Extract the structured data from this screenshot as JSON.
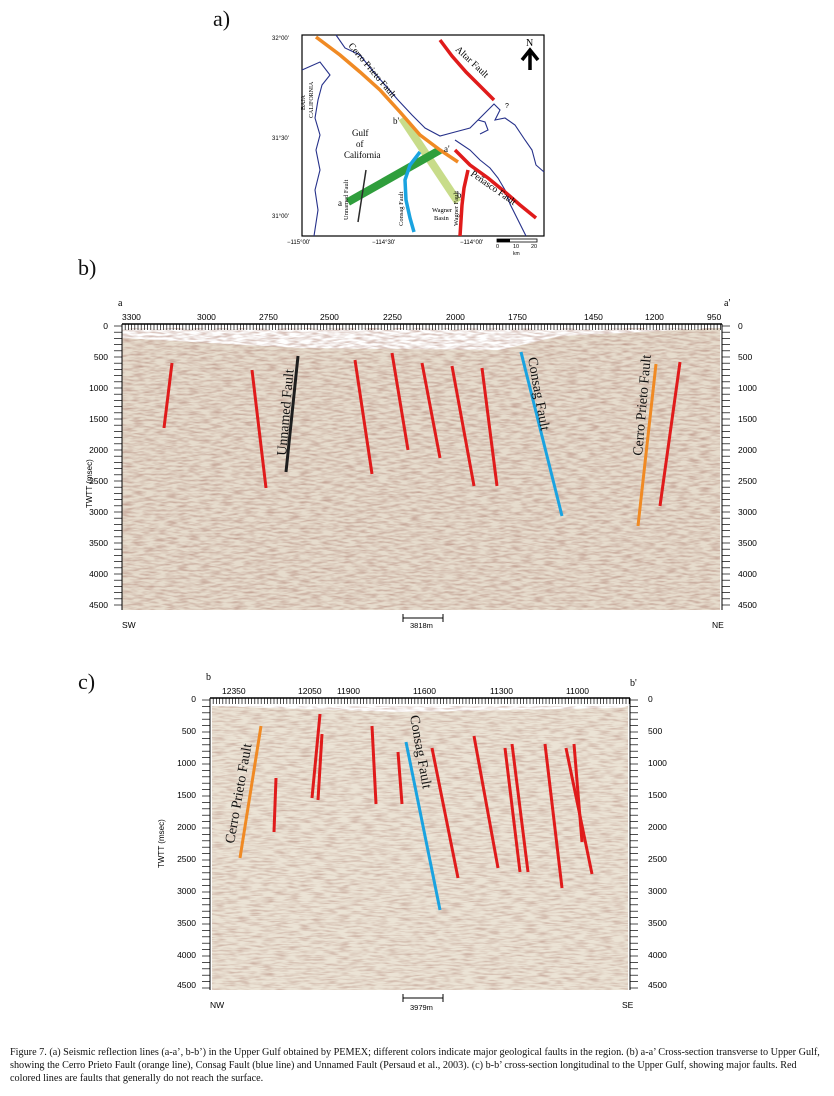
{
  "panel_a": {
    "label": "a)",
    "lat_labels": [
      "32°00'",
      "31°30'",
      "31°00'"
    ],
    "lon_labels": [
      "−115°00'",
      "−114°30'",
      "−114°00'"
    ],
    "scale_ticks": [
      "0",
      "10",
      "20"
    ],
    "scale_unit": "km",
    "north": "N",
    "place_baja": [
      "BAJA",
      "CALIFORNIA"
    ],
    "place_gulf": [
      "Gulf",
      "of",
      "California"
    ],
    "place_wagner": [
      "Wagner",
      "Basin"
    ],
    "fault_cerro": "Cerro Prieto Fault",
    "fault_altar": "Altar Fault",
    "fault_penasco": "Peñasco Fault",
    "fault_unnamed": "Unnamed Fault",
    "fault_consag": "Consag Fault",
    "fault_wagner": "Wagner Fault",
    "q_mark": "?",
    "pt_a": "a",
    "pt_a2": "a'",
    "pt_b": "b",
    "pt_b2": "b'",
    "colors": {
      "cerro": "#f08a24",
      "altar": "#e01b1b",
      "consag": "#1aa3e0",
      "unnamed": "#2a2a2a",
      "line_a": "#2f9e3c",
      "line_b": "#c8dc8a",
      "coast": "#26318a"
    }
  },
  "panel_b": {
    "label": "b)",
    "start_label": "a",
    "end_label": "a'",
    "top_ticks": [
      "3300",
      "3000",
      "2750",
      "2500",
      "2250",
      "2000",
      "1750",
      "1450",
      "1200",
      "950"
    ],
    "y_ticks": [
      "0",
      "500",
      "1000",
      "1500",
      "2000",
      "2500",
      "3000",
      "3500",
      "4000",
      "4500"
    ],
    "ylabel": "TWTT (msec)",
    "left_dir": "SW",
    "right_dir": "NE",
    "scale": "3818m",
    "fault_unnamed": "Unnamed Fault",
    "fault_consag": "Consag Fault",
    "fault_cerro": "Cerro Prieto Fault"
  },
  "panel_c": {
    "label": "c)",
    "start_label": "b",
    "end_label": "b'",
    "top_ticks": [
      "12350",
      "12050",
      "11900",
      "11600",
      "11300",
      "11000"
    ],
    "y_ticks": [
      "0",
      "500",
      "1000",
      "1500",
      "2000",
      "2500",
      "3000",
      "3500",
      "4000",
      "4500"
    ],
    "ylabel": "TWTT (msec)",
    "left_dir": "NW",
    "right_dir": "SE",
    "scale": "3979m",
    "fault_cerro": "Cerro Prieto Fault",
    "fault_consag": "Consag Fault"
  },
  "caption": "Figure 7. (a) Seismic reflection lines (a-a’, b-b’) in the Upper Gulf obtained by PEMEX; different colors indicate major geological faults in the region. (b) a-a’ Cross-section transverse to Upper Gulf, showing the Cerro Prieto Fault (orange line), Consag Fault (blue line) and Unnamed Fault (Persaud et al., 2003). (c) b-b’ cross-section longitudinal to the Upper Gulf, showing major faults. Red colored lines are faults that generally do not reach the surface."
}
